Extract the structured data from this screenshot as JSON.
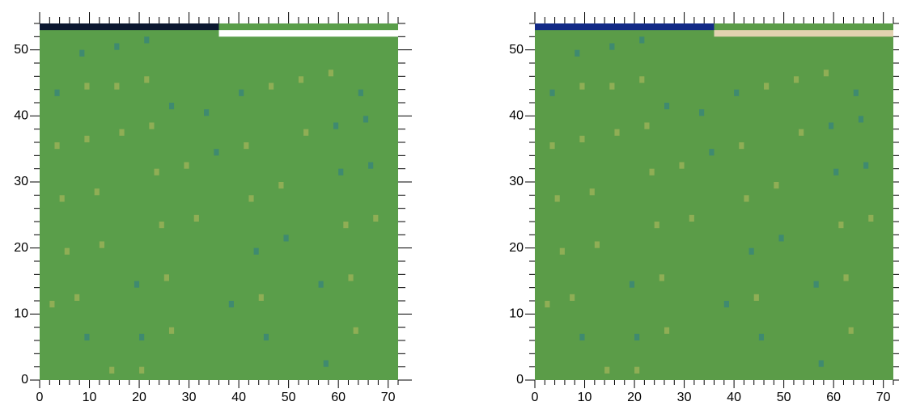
{
  "chart_data": [
    {
      "type": "heatmap",
      "background": "#5a9e4a",
      "xlim": [
        0,
        72
      ],
      "ylim": [
        0,
        54
      ],
      "xticks": [
        0,
        10,
        20,
        30,
        40,
        50,
        60,
        70
      ],
      "yticks": [
        0,
        10,
        20,
        30,
        40,
        50
      ],
      "minor_xticks": [
        0,
        2,
        4,
        6,
        8,
        12,
        14,
        16,
        18,
        22,
        24,
        26,
        28,
        32,
        34,
        36,
        38,
        42,
        44,
        46,
        48,
        52,
        54,
        56,
        58,
        62,
        64,
        66,
        68,
        72
      ],
      "minor_yticks": [
        2,
        4,
        6,
        8,
        12,
        14,
        16,
        18,
        22,
        24,
        26,
        28,
        32,
        34,
        36,
        38,
        42,
        44,
        46,
        48,
        52,
        54
      ],
      "bands": [
        {
          "x0": 0,
          "x1": 36,
          "y0": 53,
          "y1": 54,
          "color": "#0c1830"
        },
        {
          "x0": 36,
          "x1": 72,
          "y0": 52,
          "y1": 53,
          "color": "#ffffff"
        }
      ],
      "spots": [
        {
          "x": 8,
          "y": 49,
          "color": "#3f8a70"
        },
        {
          "x": 15,
          "y": 50,
          "color": "#3f8a70"
        },
        {
          "x": 21,
          "y": 51,
          "color": "#3f8a70"
        },
        {
          "x": 3,
          "y": 43,
          "color": "#3f8a70"
        },
        {
          "x": 9,
          "y": 44,
          "color": "#8fae55"
        },
        {
          "x": 15,
          "y": 44,
          "color": "#8fae55"
        },
        {
          "x": 21,
          "y": 45,
          "color": "#8fae55"
        },
        {
          "x": 26,
          "y": 41,
          "color": "#3f8a70"
        },
        {
          "x": 33,
          "y": 40,
          "color": "#3f8a70"
        },
        {
          "x": 40,
          "y": 43,
          "color": "#3f8a70"
        },
        {
          "x": 46,
          "y": 44,
          "color": "#8fae55"
        },
        {
          "x": 52,
          "y": 45,
          "color": "#8fae55"
        },
        {
          "x": 58,
          "y": 46,
          "color": "#8fae55"
        },
        {
          "x": 64,
          "y": 43,
          "color": "#3f8a70"
        },
        {
          "x": 3,
          "y": 35,
          "color": "#8fae55"
        },
        {
          "x": 9,
          "y": 36,
          "color": "#8fae55"
        },
        {
          "x": 16,
          "y": 37,
          "color": "#8fae55"
        },
        {
          "x": 22,
          "y": 38,
          "color": "#8fae55"
        },
        {
          "x": 35,
          "y": 34,
          "color": "#3f8a70"
        },
        {
          "x": 41,
          "y": 35,
          "color": "#8fae55"
        },
        {
          "x": 53,
          "y": 37,
          "color": "#8fae55"
        },
        {
          "x": 59,
          "y": 38,
          "color": "#3f8a70"
        },
        {
          "x": 65,
          "y": 39,
          "color": "#3f8a70"
        },
        {
          "x": 4,
          "y": 27,
          "color": "#8fae55"
        },
        {
          "x": 11,
          "y": 28,
          "color": "#8fae55"
        },
        {
          "x": 23,
          "y": 31,
          "color": "#8fae55"
        },
        {
          "x": 29,
          "y": 32,
          "color": "#8fae55"
        },
        {
          "x": 42,
          "y": 27,
          "color": "#8fae55"
        },
        {
          "x": 48,
          "y": 29,
          "color": "#8fae55"
        },
        {
          "x": 60,
          "y": 31,
          "color": "#3f8a70"
        },
        {
          "x": 66,
          "y": 32,
          "color": "#3f8a70"
        },
        {
          "x": 5,
          "y": 19,
          "color": "#8fae55"
        },
        {
          "x": 12,
          "y": 20,
          "color": "#8fae55"
        },
        {
          "x": 24,
          "y": 23,
          "color": "#8fae55"
        },
        {
          "x": 31,
          "y": 24,
          "color": "#8fae55"
        },
        {
          "x": 43,
          "y": 19,
          "color": "#3f8a70"
        },
        {
          "x": 49,
          "y": 21,
          "color": "#3f8a70"
        },
        {
          "x": 61,
          "y": 23,
          "color": "#8fae55"
        },
        {
          "x": 67,
          "y": 24,
          "color": "#8fae55"
        },
        {
          "x": 2,
          "y": 11,
          "color": "#8fae55"
        },
        {
          "x": 7,
          "y": 12,
          "color": "#8fae55"
        },
        {
          "x": 19,
          "y": 14,
          "color": "#3f8a70"
        },
        {
          "x": 25,
          "y": 15,
          "color": "#8fae55"
        },
        {
          "x": 38,
          "y": 11,
          "color": "#3f8a70"
        },
        {
          "x": 44,
          "y": 12,
          "color": "#8fae55"
        },
        {
          "x": 56,
          "y": 14,
          "color": "#3f8a70"
        },
        {
          "x": 62,
          "y": 15,
          "color": "#8fae55"
        },
        {
          "x": 9,
          "y": 6,
          "color": "#3f8a70"
        },
        {
          "x": 20,
          "y": 6,
          "color": "#3f8a70"
        },
        {
          "x": 26,
          "y": 7,
          "color": "#8fae55"
        },
        {
          "x": 45,
          "y": 6,
          "color": "#3f8a70"
        },
        {
          "x": 63,
          "y": 7,
          "color": "#8fae55"
        },
        {
          "x": 14,
          "y": 1,
          "color": "#8fae55"
        },
        {
          "x": 20,
          "y": 1,
          "color": "#8fae55"
        },
        {
          "x": 57,
          "y": 2,
          "color": "#3f8a70"
        }
      ]
    },
    {
      "type": "heatmap",
      "background": "#5b9c48",
      "xlim": [
        0,
        72
      ],
      "ylim": [
        0,
        54
      ],
      "xticks": [
        0,
        10,
        20,
        30,
        40,
        50,
        60,
        70
      ],
      "yticks": [
        0,
        10,
        20,
        30,
        40,
        50
      ],
      "minor_xticks": [
        0,
        2,
        4,
        6,
        8,
        12,
        14,
        16,
        18,
        22,
        24,
        26,
        28,
        32,
        34,
        36,
        38,
        42,
        44,
        46,
        48,
        52,
        54,
        56,
        58,
        62,
        64,
        66,
        68,
        72
      ],
      "minor_yticks": [
        2,
        4,
        6,
        8,
        12,
        14,
        16,
        18,
        22,
        24,
        26,
        28,
        32,
        34,
        36,
        38,
        42,
        44,
        46,
        48,
        52,
        54
      ],
      "bands": [
        {
          "x0": 0,
          "x1": 36,
          "y0": 53,
          "y1": 54,
          "color": "#122a86"
        },
        {
          "x0": 36,
          "x1": 72,
          "y0": 52,
          "y1": 53,
          "color": "#e2d2b0"
        }
      ],
      "spots": [
        {
          "x": 8,
          "y": 49,
          "color": "#3f8a70"
        },
        {
          "x": 15,
          "y": 50,
          "color": "#3f8a70"
        },
        {
          "x": 21,
          "y": 51,
          "color": "#3f8a70"
        },
        {
          "x": 3,
          "y": 43,
          "color": "#3f8a70"
        },
        {
          "x": 9,
          "y": 44,
          "color": "#8fae55"
        },
        {
          "x": 15,
          "y": 44,
          "color": "#8fae55"
        },
        {
          "x": 21,
          "y": 45,
          "color": "#8fae55"
        },
        {
          "x": 26,
          "y": 41,
          "color": "#3f8a70"
        },
        {
          "x": 33,
          "y": 40,
          "color": "#3f8a70"
        },
        {
          "x": 40,
          "y": 43,
          "color": "#3f8a70"
        },
        {
          "x": 46,
          "y": 44,
          "color": "#8fae55"
        },
        {
          "x": 52,
          "y": 45,
          "color": "#8fae55"
        },
        {
          "x": 58,
          "y": 46,
          "color": "#8fae55"
        },
        {
          "x": 64,
          "y": 43,
          "color": "#3f8a70"
        },
        {
          "x": 3,
          "y": 35,
          "color": "#8fae55"
        },
        {
          "x": 9,
          "y": 36,
          "color": "#8fae55"
        },
        {
          "x": 16,
          "y": 37,
          "color": "#8fae55"
        },
        {
          "x": 22,
          "y": 38,
          "color": "#8fae55"
        },
        {
          "x": 35,
          "y": 34,
          "color": "#3f8a70"
        },
        {
          "x": 41,
          "y": 35,
          "color": "#8fae55"
        },
        {
          "x": 53,
          "y": 37,
          "color": "#8fae55"
        },
        {
          "x": 59,
          "y": 38,
          "color": "#3f8a70"
        },
        {
          "x": 65,
          "y": 39,
          "color": "#3f8a70"
        },
        {
          "x": 4,
          "y": 27,
          "color": "#8fae55"
        },
        {
          "x": 11,
          "y": 28,
          "color": "#8fae55"
        },
        {
          "x": 23,
          "y": 31,
          "color": "#8fae55"
        },
        {
          "x": 29,
          "y": 32,
          "color": "#8fae55"
        },
        {
          "x": 42,
          "y": 27,
          "color": "#8fae55"
        },
        {
          "x": 48,
          "y": 29,
          "color": "#8fae55"
        },
        {
          "x": 60,
          "y": 31,
          "color": "#3f8a70"
        },
        {
          "x": 66,
          "y": 32,
          "color": "#3f8a70"
        },
        {
          "x": 5,
          "y": 19,
          "color": "#8fae55"
        },
        {
          "x": 12,
          "y": 20,
          "color": "#8fae55"
        },
        {
          "x": 24,
          "y": 23,
          "color": "#8fae55"
        },
        {
          "x": 31,
          "y": 24,
          "color": "#8fae55"
        },
        {
          "x": 43,
          "y": 19,
          "color": "#3f8a70"
        },
        {
          "x": 49,
          "y": 21,
          "color": "#3f8a70"
        },
        {
          "x": 61,
          "y": 23,
          "color": "#8fae55"
        },
        {
          "x": 67,
          "y": 24,
          "color": "#8fae55"
        },
        {
          "x": 2,
          "y": 11,
          "color": "#8fae55"
        },
        {
          "x": 7,
          "y": 12,
          "color": "#8fae55"
        },
        {
          "x": 19,
          "y": 14,
          "color": "#3f8a70"
        },
        {
          "x": 25,
          "y": 15,
          "color": "#8fae55"
        },
        {
          "x": 38,
          "y": 11,
          "color": "#3f8a70"
        },
        {
          "x": 44,
          "y": 12,
          "color": "#8fae55"
        },
        {
          "x": 56,
          "y": 14,
          "color": "#3f8a70"
        },
        {
          "x": 62,
          "y": 15,
          "color": "#8fae55"
        },
        {
          "x": 9,
          "y": 6,
          "color": "#3f8a70"
        },
        {
          "x": 20,
          "y": 6,
          "color": "#3f8a70"
        },
        {
          "x": 26,
          "y": 7,
          "color": "#8fae55"
        },
        {
          "x": 45,
          "y": 6,
          "color": "#3f8a70"
        },
        {
          "x": 63,
          "y": 7,
          "color": "#8fae55"
        },
        {
          "x": 14,
          "y": 1,
          "color": "#8fae55"
        },
        {
          "x": 20,
          "y": 1,
          "color": "#8fae55"
        },
        {
          "x": 57,
          "y": 2,
          "color": "#3f8a70"
        }
      ]
    }
  ]
}
